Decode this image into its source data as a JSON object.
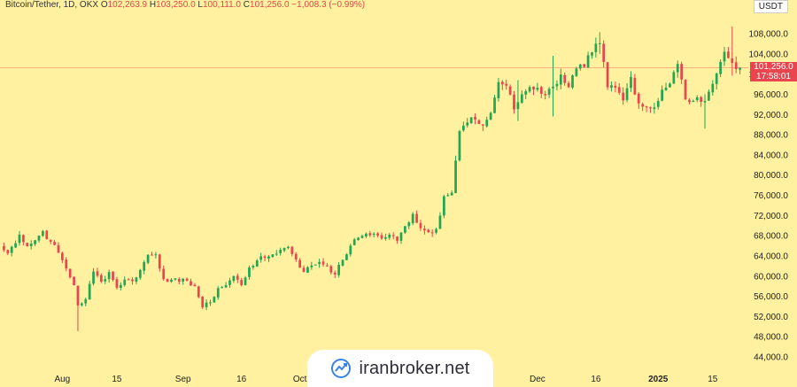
{
  "header": {
    "symbol": "Bitcoin/Tether, 1D, OKX",
    "open_label": "O",
    "open": "102,263.9",
    "high_label": "H",
    "high": "103,250.0",
    "low_label": "L",
    "low": "100,111.0",
    "close_label": "C",
    "close": "101,256.0",
    "change": "−1,008.3 (−0.99%)"
  },
  "currency": "USDT",
  "price_tag": {
    "price": "101,256.0",
    "countdown": "17:58:01"
  },
  "watermark": {
    "text": "iranbroker.net"
  },
  "colors": {
    "background": "#fff1a0",
    "up": "#22a652",
    "down": "#e8454f",
    "price_line": "#e8454f"
  },
  "chart_data": {
    "type": "candlestick",
    "y_axis": {
      "range": [
        42000,
        112000
      ],
      "ticks": [
        108000,
        104000,
        100000,
        96000,
        92000,
        88000,
        84000,
        80000,
        76000,
        72000,
        68000,
        64000,
        60000,
        56000,
        52000,
        48000,
        44000
      ],
      "tick_labels": [
        "108,000.0",
        "104,000.0",
        "100,000.0",
        "96,000.0",
        "92,000.0",
        "88,000.0",
        "84,000.0",
        "80,000.0",
        "76,000.0",
        "72,000.0",
        "68,000.0",
        "64,000.0",
        "60,000.0",
        "56,000.0",
        "52,000.0",
        "48,000.0",
        "44,000.0"
      ]
    },
    "x_axis": {
      "labels": [
        "Aug",
        "15",
        "Sep",
        "16",
        "Oct",
        "Dec",
        "16",
        "2025",
        "15"
      ],
      "label_dates": [
        "2024-08-01",
        "2024-08-15",
        "2024-09-01",
        "2024-09-16",
        "2024-10-01",
        "2024-12-01",
        "2024-12-16",
        "2025-01-01",
        "2025-01-15"
      ],
      "range": [
        "2024-07-16",
        "2025-01-23"
      ]
    },
    "last_price": 101256,
    "closes": [
      [
        "2024-07-16",
        65800
      ],
      [
        "2024-07-18",
        64500
      ],
      [
        "2024-07-21",
        68200
      ],
      [
        "2024-07-23",
        65900
      ],
      [
        "2024-07-25",
        67100
      ],
      [
        "2024-07-27",
        68900
      ],
      [
        "2024-07-29",
        66800
      ],
      [
        "2024-07-31",
        64600
      ],
      [
        "2024-08-02",
        61500
      ],
      [
        "2024-08-04",
        58200
      ],
      [
        "2024-08-05",
        54200
      ],
      [
        "2024-08-07",
        55400
      ],
      [
        "2024-08-09",
        60900
      ],
      [
        "2024-08-11",
        58900
      ],
      [
        "2024-08-13",
        60800
      ],
      [
        "2024-08-15",
        57700
      ],
      [
        "2024-08-17",
        59300
      ],
      [
        "2024-08-19",
        59000
      ],
      [
        "2024-08-21",
        61200
      ],
      [
        "2024-08-23",
        64200
      ],
      [
        "2024-08-25",
        64300
      ],
      [
        "2024-08-27",
        59400
      ],
      [
        "2024-08-29",
        59300
      ],
      [
        "2024-08-31",
        58900
      ],
      [
        "2024-09-02",
        59100
      ],
      [
        "2024-09-04",
        58000
      ],
      [
        "2024-09-06",
        53800
      ],
      [
        "2024-09-08",
        54800
      ],
      [
        "2024-09-10",
        57600
      ],
      [
        "2024-09-12",
        58200
      ],
      [
        "2024-09-14",
        60000
      ],
      [
        "2024-09-16",
        58200
      ],
      [
        "2024-09-18",
        61700
      ],
      [
        "2024-09-20",
        63100
      ],
      [
        "2024-09-22",
        63600
      ],
      [
        "2024-09-24",
        64300
      ],
      [
        "2024-09-26",
        65200
      ],
      [
        "2024-09-28",
        65800
      ],
      [
        "2024-09-30",
        63300
      ],
      [
        "2024-10-02",
        60800
      ],
      [
        "2024-10-04",
        62100
      ],
      [
        "2024-10-06",
        62800
      ],
      [
        "2024-10-08",
        62100
      ],
      [
        "2024-10-10",
        60300
      ],
      [
        "2024-10-12",
        63200
      ],
      [
        "2024-10-14",
        66000
      ],
      [
        "2024-10-16",
        67600
      ],
      [
        "2024-10-18",
        68400
      ],
      [
        "2024-10-20",
        68400
      ],
      [
        "2024-10-22",
        67400
      ],
      [
        "2024-10-24",
        68200
      ],
      [
        "2024-10-26",
        67000
      ],
      [
        "2024-10-28",
        69900
      ],
      [
        "2024-10-30",
        72300
      ],
      [
        "2024-11-01",
        69500
      ],
      [
        "2024-11-03",
        68700
      ],
      [
        "2024-11-05",
        69300
      ],
      [
        "2024-11-07",
        75800
      ],
      [
        "2024-11-09",
        76500
      ],
      [
        "2024-11-11",
        88700
      ],
      [
        "2024-11-13",
        90400
      ],
      [
        "2024-11-15",
        91000
      ],
      [
        "2024-11-17",
        89800
      ],
      [
        "2024-11-19",
        92300
      ],
      [
        "2024-11-21",
        98400
      ],
      [
        "2024-11-23",
        97700
      ],
      [
        "2024-11-25",
        93000
      ],
      [
        "2024-11-27",
        96000
      ],
      [
        "2024-11-29",
        97400
      ],
      [
        "2024-12-01",
        97300
      ],
      [
        "2024-12-03",
        95800
      ],
      [
        "2024-12-05",
        97500
      ],
      [
        "2024-12-07",
        99900
      ],
      [
        "2024-12-09",
        97400
      ],
      [
        "2024-12-11",
        101100
      ],
      [
        "2024-12-13",
        101400
      ],
      [
        "2024-12-15",
        104300
      ],
      [
        "2024-12-17",
        106100
      ],
      [
        "2024-12-19",
        97400
      ],
      [
        "2024-12-21",
        97300
      ],
      [
        "2024-12-23",
        94800
      ],
      [
        "2024-12-25",
        99400
      ],
      [
        "2024-12-27",
        94200
      ],
      [
        "2024-12-29",
        93500
      ],
      [
        "2024-12-31",
        93400
      ],
      [
        "2025-01-02",
        96900
      ],
      [
        "2025-01-04",
        98100
      ],
      [
        "2025-01-06",
        102000
      ],
      [
        "2025-01-08",
        95000
      ],
      [
        "2025-01-10",
        94700
      ],
      [
        "2025-01-12",
        94500
      ],
      [
        "2025-01-14",
        96500
      ],
      [
        "2025-01-16",
        100100
      ],
      [
        "2025-01-18",
        104400
      ],
      [
        "2025-01-20",
        102200
      ],
      [
        "2025-01-22",
        101256
      ]
    ],
    "notable_wicks": [
      [
        "2024-08-05",
        49100,
        56100
      ],
      [
        "2024-11-26",
        90700,
        98800
      ],
      [
        "2024-12-05",
        91600,
        103600
      ],
      [
        "2024-12-17",
        104000,
        108300
      ],
      [
        "2025-01-13",
        89200,
        96000
      ],
      [
        "2025-01-20",
        99700,
        109400
      ]
    ]
  }
}
